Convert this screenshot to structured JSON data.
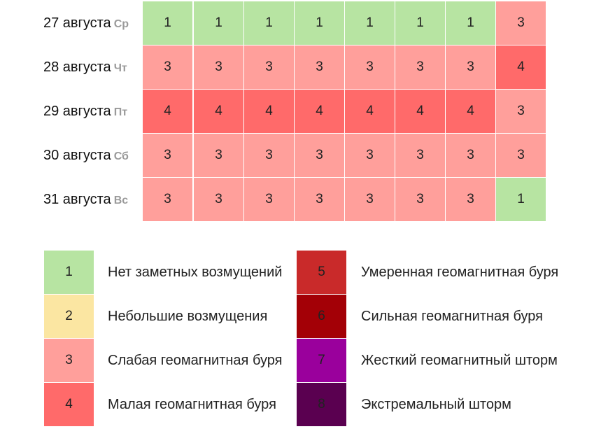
{
  "forecast": {
    "rows": [
      {
        "date": "27 августа",
        "weekday": "Ср",
        "values": [
          "1",
          "1",
          "1",
          "1",
          "1",
          "1",
          "1",
          "3"
        ]
      },
      {
        "date": "28 августа",
        "weekday": "Чт",
        "values": [
          "3",
          "3",
          "3",
          "3",
          "3",
          "3",
          "3",
          "4"
        ]
      },
      {
        "date": "29 августа",
        "weekday": "Пт",
        "values": [
          "4",
          "4",
          "4",
          "4",
          "4",
          "4",
          "4",
          "3"
        ]
      },
      {
        "date": "30 августа",
        "weekday": "Сб",
        "values": [
          "3",
          "3",
          "3",
          "3",
          "3",
          "3",
          "3",
          "3"
        ]
      },
      {
        "date": "31 августа",
        "weekday": "Вс",
        "values": [
          "3",
          "3",
          "3",
          "3",
          "3",
          "3",
          "3",
          "1"
        ]
      }
    ]
  },
  "legend": {
    "items": [
      {
        "level": "1",
        "text": "Нет заметных возмущений"
      },
      {
        "level": "2",
        "text": "Небольшие возмущения"
      },
      {
        "level": "3",
        "text": "Слабая геомагнитная буря"
      },
      {
        "level": "4",
        "text": "Малая геомагнитная буря"
      },
      {
        "level": "5",
        "text": "Умеренная геомагнитная буря"
      },
      {
        "level": "6",
        "text": "Сильная геомагнитная буря"
      },
      {
        "level": "7",
        "text": "Жесткий геомагнитный шторм"
      },
      {
        "level": "8",
        "text": "Экстремальный шторм"
      }
    ]
  },
  "colors": {
    "1": "#b7e4a2",
    "2": "#fbe6a2",
    "3": "#ff9f9b",
    "4": "#ff6a6a",
    "5": "#c92a2a",
    "6": "#a30006",
    "7": "#9a009c",
    "8": "#5a0050"
  }
}
